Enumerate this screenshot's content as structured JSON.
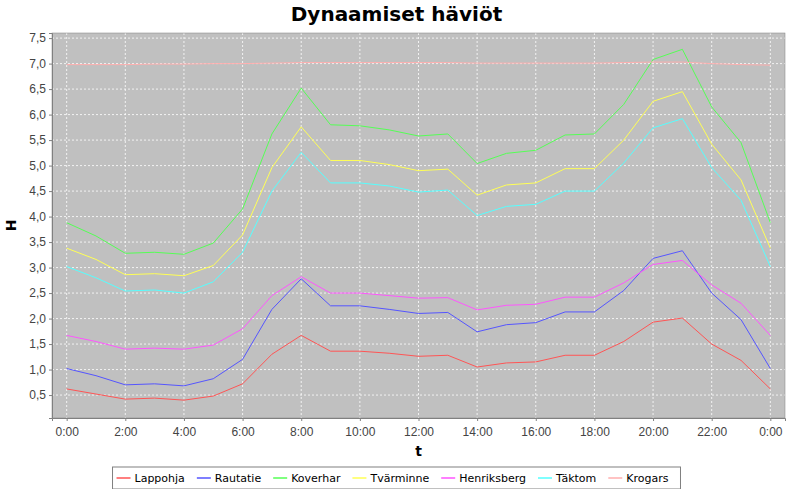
{
  "chart_data": {
    "type": "line",
    "title": "Dynaamiset häviöt",
    "x_label": "t",
    "y_label": "H",
    "x": [
      0,
      1,
      2,
      3,
      4,
      5,
      6,
      7,
      8,
      9,
      10,
      11,
      12,
      13,
      14,
      15,
      16,
      17,
      18,
      19,
      20,
      21,
      22,
      23,
      24
    ],
    "xlim": [
      -0.5,
      24.5
    ],
    "xticks": [
      {
        "value": 0,
        "label": "0:00"
      },
      {
        "value": 2,
        "label": "2:00"
      },
      {
        "value": 4,
        "label": "4:00"
      },
      {
        "value": 6,
        "label": "6:00"
      },
      {
        "value": 8,
        "label": "8:00"
      },
      {
        "value": 10,
        "label": "10:00"
      },
      {
        "value": 12,
        "label": "12:00"
      },
      {
        "value": 14,
        "label": "14:00"
      },
      {
        "value": 16,
        "label": "16:00"
      },
      {
        "value": 18,
        "label": "18:00"
      },
      {
        "value": 20,
        "label": "20:00"
      },
      {
        "value": 22,
        "label": "22:00"
      },
      {
        "value": 24,
        "label": "0:00"
      }
    ],
    "ylim": [
      0.05,
      7.6
    ],
    "yticks": [
      {
        "value": 0.5,
        "label": "0,5"
      },
      {
        "value": 1,
        "label": "1,0"
      },
      {
        "value": 1.5,
        "label": "1,5"
      },
      {
        "value": 2,
        "label": "2,0"
      },
      {
        "value": 2.5,
        "label": "2,5"
      },
      {
        "value": 3,
        "label": "3,0"
      },
      {
        "value": 3.5,
        "label": "3,5"
      },
      {
        "value": 4,
        "label": "4,0"
      },
      {
        "value": 4.5,
        "label": "4,5"
      },
      {
        "value": 5,
        "label": "5,0"
      },
      {
        "value": 5.5,
        "label": "5,5"
      },
      {
        "value": 6,
        "label": "6,0"
      },
      {
        "value": 6.5,
        "label": "6,5"
      },
      {
        "value": 7,
        "label": "7,0"
      },
      {
        "value": 7.5,
        "label": "7,5"
      }
    ],
    "grid": true,
    "legend": "bottom",
    "series": [
      {
        "name": "Lappohja",
        "color": "#ff5555",
        "values": [
          0.62,
          0.52,
          0.42,
          0.44,
          0.4,
          0.48,
          0.72,
          1.3,
          1.67,
          1.36,
          1.36,
          1.32,
          1.26,
          1.28,
          1.05,
          1.13,
          1.15,
          1.28,
          1.28,
          1.55,
          1.93,
          2.01,
          1.5,
          1.18,
          0.62
        ]
      },
      {
        "name": "Rautatie",
        "color": "#5555ff",
        "values": [
          1.02,
          0.88,
          0.7,
          0.72,
          0.68,
          0.82,
          1.2,
          2.18,
          2.78,
          2.25,
          2.25,
          2.18,
          2.1,
          2.12,
          1.74,
          1.88,
          1.92,
          2.13,
          2.13,
          2.55,
          3.18,
          3.33,
          2.5,
          1.98,
          1.02
        ]
      },
      {
        "name": "Koverhar",
        "color": "#55ff55",
        "values": [
          3.88,
          3.62,
          3.28,
          3.3,
          3.26,
          3.48,
          4.15,
          5.62,
          6.52,
          5.8,
          5.78,
          5.7,
          5.58,
          5.62,
          5.04,
          5.24,
          5.3,
          5.6,
          5.62,
          6.2,
          7.08,
          7.28,
          6.15,
          5.45,
          3.88
        ]
      },
      {
        "name": "Tvärminne",
        "color": "#ffff55",
        "values": [
          3.38,
          3.16,
          2.86,
          2.88,
          2.84,
          3.04,
          3.64,
          4.96,
          5.76,
          5.1,
          5.1,
          5.02,
          4.9,
          4.93,
          4.42,
          4.62,
          4.66,
          4.94,
          4.94,
          5.5,
          6.26,
          6.45,
          5.42,
          4.72,
          3.38
        ]
      },
      {
        "name": "Henriksberg",
        "color": "#ff55ff",
        "values": [
          1.67,
          1.55,
          1.4,
          1.42,
          1.4,
          1.48,
          1.8,
          2.45,
          2.82,
          2.5,
          2.5,
          2.45,
          2.4,
          2.41,
          2.17,
          2.26,
          2.28,
          2.42,
          2.42,
          2.7,
          3.06,
          3.14,
          2.66,
          2.3,
          1.67
        ]
      },
      {
        "name": "Täktom",
        "color": "#55ffff",
        "values": [
          3.02,
          2.8,
          2.54,
          2.56,
          2.5,
          2.72,
          3.3,
          4.5,
          5.26,
          4.66,
          4.66,
          4.6,
          4.48,
          4.52,
          4.02,
          4.2,
          4.24,
          4.5,
          4.5,
          5.05,
          5.74,
          5.92,
          4.96,
          4.32,
          3.02
        ]
      },
      {
        "name": "Krogars",
        "color": "#ffafaf",
        "values": [
          6.98,
          6.98,
          6.98,
          6.99,
          6.99,
          7.0,
          7.0,
          7.01,
          7.02,
          7.02,
          7.02,
          7.02,
          7.02,
          7.02,
          7.01,
          7.01,
          7.01,
          7.01,
          7.01,
          7.02,
          7.03,
          7.03,
          7.0,
          6.98,
          6.97
        ]
      }
    ]
  }
}
